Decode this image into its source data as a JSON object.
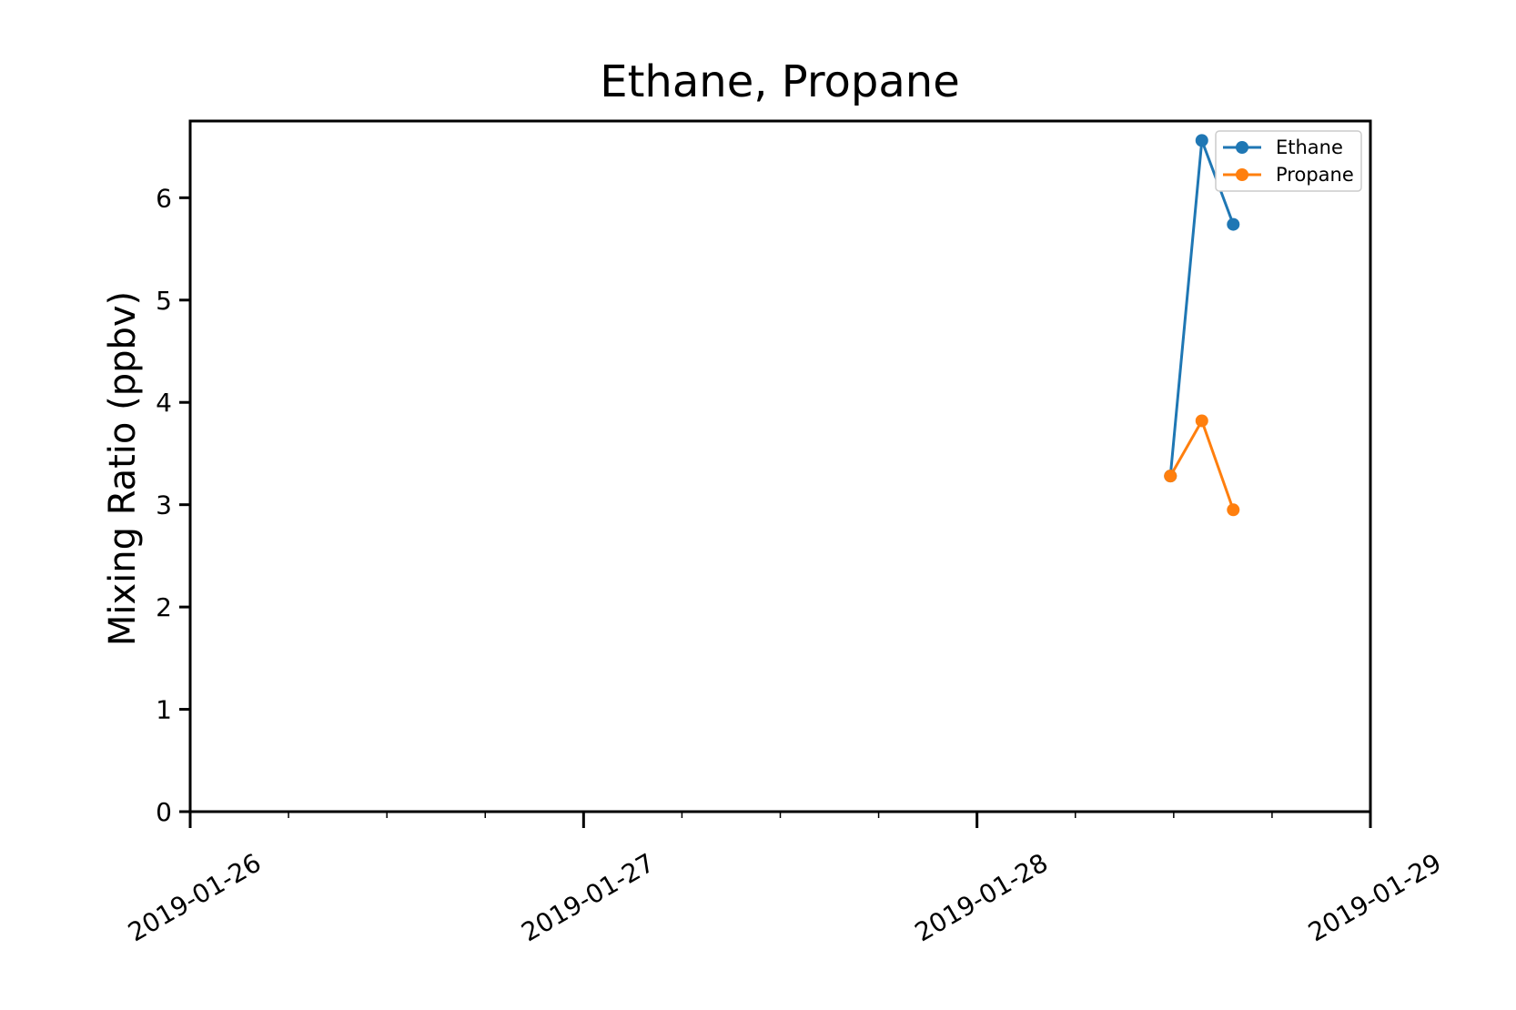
{
  "chart_data": {
    "type": "line",
    "title": "Ethane, Propane",
    "xlabel": "",
    "ylabel": "Mixing Ratio (ppbv)",
    "x_axis_type": "date",
    "xlim": [
      "2019-01-26T00:00",
      "2019-01-29T00:00"
    ],
    "ylim": [
      0,
      6.75
    ],
    "x_ticks": [
      "2019-01-26",
      "2019-01-27",
      "2019-01-28",
      "2019-01-29"
    ],
    "y_ticks": [
      "0",
      "1",
      "2",
      "3",
      "4",
      "5",
      "6"
    ],
    "grid": false,
    "legend": "top-right",
    "series": [
      {
        "name": "Ethane",
        "color": "#1f77b4",
        "x": [
          "2019-01-28T11:48",
          "2019-01-28T13:43",
          "2019-01-28T15:38"
        ],
        "y": [
          3.28,
          6.56,
          5.74
        ]
      },
      {
        "name": "Propane",
        "color": "#ff7f0e",
        "x": [
          "2019-01-28T11:48",
          "2019-01-28T13:43",
          "2019-01-28T15:38"
        ],
        "y": [
          3.28,
          3.82,
          2.95
        ]
      }
    ]
  }
}
